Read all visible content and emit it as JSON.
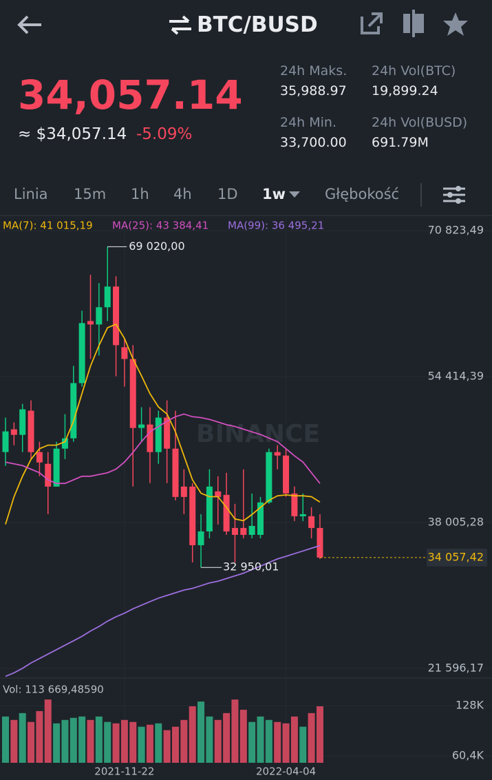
{
  "header": {
    "pair": "BTC/BUSD"
  },
  "price": {
    "last": "34,057.14",
    "fiat": "≈ $34,057.14",
    "change": "-5.09%"
  },
  "stats": [
    {
      "label": "24h Maks.",
      "value": "35,988.97"
    },
    {
      "label": "24h Vol(BTC)",
      "value": "19,899.24"
    },
    {
      "label": "24h Min.",
      "value": "33,700.00"
    },
    {
      "label": "24h Vol(BUSD)",
      "value": "691.79M"
    }
  ],
  "tabs": [
    "Linia",
    "15m",
    "1h",
    "4h",
    "1D",
    "1w",
    "Głębokość"
  ],
  "chart_data": [
    {
      "type": "candlestick",
      "watermark": "BINANCE",
      "up_color": "#0ecb81",
      "down_color": "#f6465d",
      "categories": [
        null,
        null,
        null,
        null,
        null,
        null,
        null,
        null,
        null,
        null,
        null,
        null,
        null,
        null,
        "2021-11-22",
        null,
        null,
        null,
        null,
        null,
        null,
        null,
        null,
        null,
        null,
        null,
        null,
        null,
        null,
        null,
        null,
        null,
        null,
        "2022-04-04",
        null,
        null,
        null,
        null
      ],
      "open": [
        45920,
        48480,
        47860,
        50575,
        45920,
        44601,
        42041,
        46308,
        47472,
        53678,
        60660,
        60272,
        62212,
        64539,
        57712,
        56393,
        48635,
        49023,
        45920,
        49799,
        46308,
        42041,
        42041,
        35447,
        36998,
        41498,
        41110,
        37386,
        37386,
        36610,
        36610,
        40257,
        45920,
        45532,
        41265,
        38705,
        38705,
        37386
      ],
      "high": [
        49799,
        49256,
        51351,
        51739,
        47084,
        45920,
        47084,
        50187,
        55618,
        61824,
        65858,
        64927,
        69020.0,
        65703,
        58721,
        57945,
        50963,
        50963,
        50575,
        51739,
        50575,
        43981,
        42429,
        38938,
        43981,
        43205,
        43593,
        40102,
        43981,
        41265,
        40877,
        46308,
        46696,
        46308,
        42041,
        41265,
        39714,
        38938
      ],
      "low": [
        44368,
        46696,
        45920,
        45144,
        43205,
        38938,
        42041,
        45144,
        47084,
        53290,
        56393,
        56781,
        60660,
        54454,
        53290,
        42041,
        47084,
        42429,
        44601,
        42429,
        40489,
        38938,
        33507,
        32950.01,
        36223,
        37774,
        36610,
        33507,
        36223,
        36223,
        36223,
        40102,
        43981,
        40877,
        38162,
        38162,
        36223,
        33900
      ],
      "close": [
        48247,
        47860,
        50730,
        45920,
        44756,
        42041,
        46308,
        47472,
        53678,
        60428,
        60272,
        62212,
        64539,
        57945,
        56393,
        48635,
        49023,
        45920,
        49799,
        46308,
        40877,
        40877,
        35447,
        36998,
        42041,
        40877,
        36998,
        36610,
        36610,
        37619,
        40257,
        45920,
        45532,
        41265,
        38705,
        38938,
        37386,
        34057.42
      ],
      "series": [
        {
          "name": "MA(7): 41 015,19",
          "color": "#f0b90b",
          "values": [
            37800,
            40900,
            43200,
            45100,
            46300,
            46700,
            46700,
            47100,
            49400,
            52500,
            55600,
            57900,
            59900,
            60300,
            58700,
            56400,
            54500,
            52500,
            51000,
            50200,
            48200,
            45500,
            42800,
            41300,
            40900,
            40900,
            39700,
            38400,
            38200,
            38900,
            39700,
            40500,
            41000,
            41100,
            41000,
            41000,
            40900,
            40300
          ]
        },
        {
          "name": "MA(25): 43 384,41",
          "color": "#d24fc0",
          "values": [
            44800,
            44600,
            44400,
            44000,
            43600,
            42800,
            42400,
            42400,
            42800,
            43200,
            43200,
            43400,
            43600,
            44000,
            44800,
            45900,
            47100,
            48200,
            48800,
            49400,
            49900,
            50200,
            49900,
            49800,
            49600,
            49300,
            49000,
            48800,
            48500,
            48200,
            47900,
            47500,
            47100,
            46300,
            45500,
            44800,
            43600,
            42400
          ]
        },
        {
          "name": "MA(99): 36 495,21",
          "color": "#9d6fe0",
          "values": [
            20700,
            21100,
            21600,
            22200,
            22700,
            23200,
            23700,
            24200,
            24700,
            25200,
            25800,
            26300,
            26900,
            27400,
            27800,
            28300,
            28700,
            29100,
            29500,
            29800,
            30100,
            30400,
            30600,
            30900,
            31200,
            31400,
            31700,
            32000,
            32300,
            32700,
            33100,
            33500,
            33900,
            34200,
            34500,
            34800,
            35100,
            35400
          ]
        }
      ],
      "ylim": [
        20500,
        72300
      ],
      "yticks": [
        {
          "value": 70823.49,
          "label": "70 823,49"
        },
        {
          "value": 54414.39,
          "label": "54 414,39"
        },
        {
          "value": 38005.28,
          "label": "38 005,28"
        },
        {
          "value": 21596.17,
          "label": "21 596,17"
        }
      ],
      "max_label": {
        "value": 69020.0,
        "label": "69 020,00"
      },
      "min_label": {
        "value": 32950.01,
        "label": "32 950,01"
      },
      "last_price": {
        "value": 34057.42,
        "label": "34 057,42",
        "color": "#f0b90b"
      }
    },
    {
      "type": "bar",
      "title": "Vol: 113 669,48590",
      "up_color": "#2f9a77",
      "down_color": "#c8465c",
      "values": [
        113400,
        108800,
        118000,
        106100,
        120700,
        136200,
        104200,
        108800,
        111600,
        113400,
        108800,
        113400,
        106100,
        104200,
        108800,
        106100,
        99700,
        102400,
        104200,
        95100,
        99700,
        108800,
        127100,
        133500,
        113400,
        108800,
        118000,
        136200,
        122500,
        106100,
        113400,
        108800,
        106100,
        104200,
        113400,
        99700,
        118000,
        127100
      ],
      "ylim": [
        51300,
        140000
      ],
      "yticks": [
        {
          "value": 128000,
          "label": "128K"
        },
        {
          "value": 60400,
          "label": "60,4K"
        }
      ]
    }
  ]
}
